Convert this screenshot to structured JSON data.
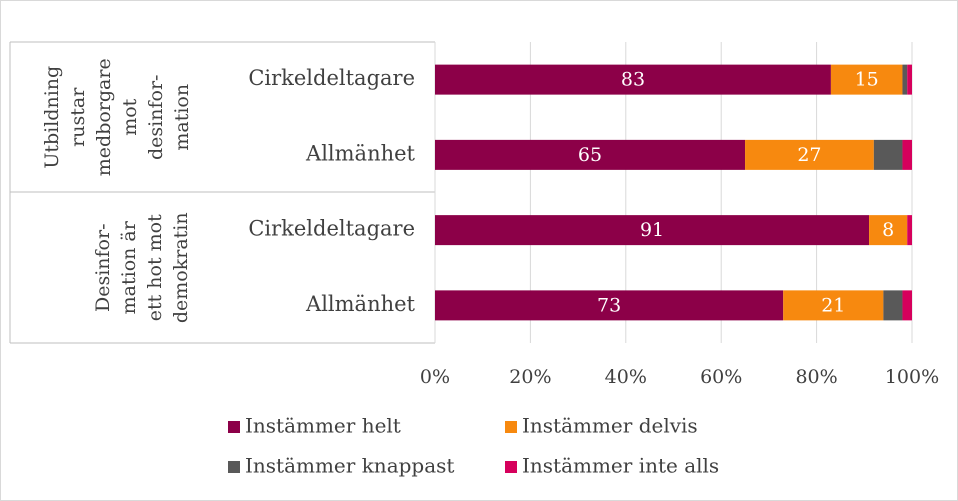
{
  "chart_data": {
    "type": "stacked-bar-horizontal",
    "groups": [
      {
        "label": [
          "Utbildning",
          "rustar",
          "medborgare",
          "mot",
          "desinfor-",
          "mation"
        ],
        "categories": [
          0,
          1
        ]
      },
      {
        "label": [
          "Desinfor-",
          "mation är",
          "ett hot mot",
          "demokratin"
        ],
        "categories": [
          2,
          3
        ]
      }
    ],
    "categories": [
      "Cirkeldeltagare",
      "Allmänhet",
      "Cirkeldeltagare",
      "Allmänhet"
    ],
    "series": [
      {
        "name": "Instämmer helt",
        "color": "#8c0048",
        "values": [
          83,
          65,
          91,
          73
        ],
        "show_labels": true
      },
      {
        "name": "Instämmer delvis",
        "color": "#f7890f",
        "values": [
          15,
          27,
          8,
          21
        ],
        "show_labels": true
      },
      {
        "name": "Instämmer knappast",
        "color": "#595959",
        "values": [
          1,
          6,
          0,
          4
        ],
        "show_labels": false
      },
      {
        "name": "Instämmer inte alls",
        "color": "#d6005c",
        "values": [
          1,
          2,
          1,
          2
        ],
        "show_labels": false
      }
    ],
    "xlim": [
      0,
      100
    ],
    "xticks": [
      {
        "value": 0,
        "label": "0%"
      },
      {
        "value": 20,
        "label": "20%"
      },
      {
        "value": 40,
        "label": "40%"
      },
      {
        "value": 60,
        "label": "60%"
      },
      {
        "value": 80,
        "label": "80%"
      },
      {
        "value": 100,
        "label": "100%"
      }
    ],
    "grid": true,
    "legend": "bottom"
  }
}
